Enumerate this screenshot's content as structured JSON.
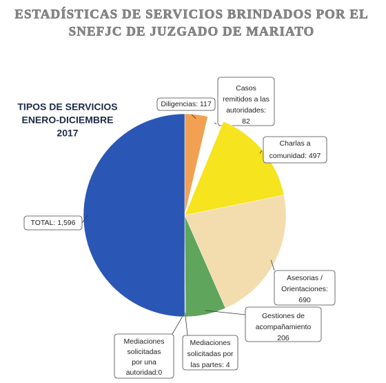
{
  "chart_data": {
    "type": "pie",
    "title": [
      "ESTADÍSTICAS DE SERVICIOS BRINDADOS POR EL",
      "SNEFJC DE  JUZGADO DE MARIATO"
    ],
    "subtitle": [
      "TIPOS DE SERVICIOS",
      "ENERO-DICIEMBRE",
      "2017"
    ],
    "values": [
      117,
      82,
      497,
      690,
      206,
      4,
      0,
      1596
    ],
    "labels": [
      [
        "Diligencias: 117"
      ],
      [
        "Casos",
        "remitidos a las",
        "autoridades:",
        "82"
      ],
      [
        "Charlas a",
        "comunidad: 497"
      ],
      [
        "Asesorias /",
        "Orientaciones:",
        "690"
      ],
      [
        "Gestiones de",
        "acompañamiento",
        "206"
      ],
      [
        "Mediaciones",
        "solicitadas por",
        "las partes: 4"
      ],
      [
        "Mediaciones",
        "solicitadas",
        "por una",
        "autoridad:0"
      ],
      [
        "TOTAL: 1,596"
      ]
    ],
    "colors": [
      "#f2a052",
      "#ffffff",
      "#f5e41e",
      "#f3dcae",
      "#5fa55c",
      "#4d7cc4",
      "#3a66b8",
      "#2a56b6"
    ]
  }
}
